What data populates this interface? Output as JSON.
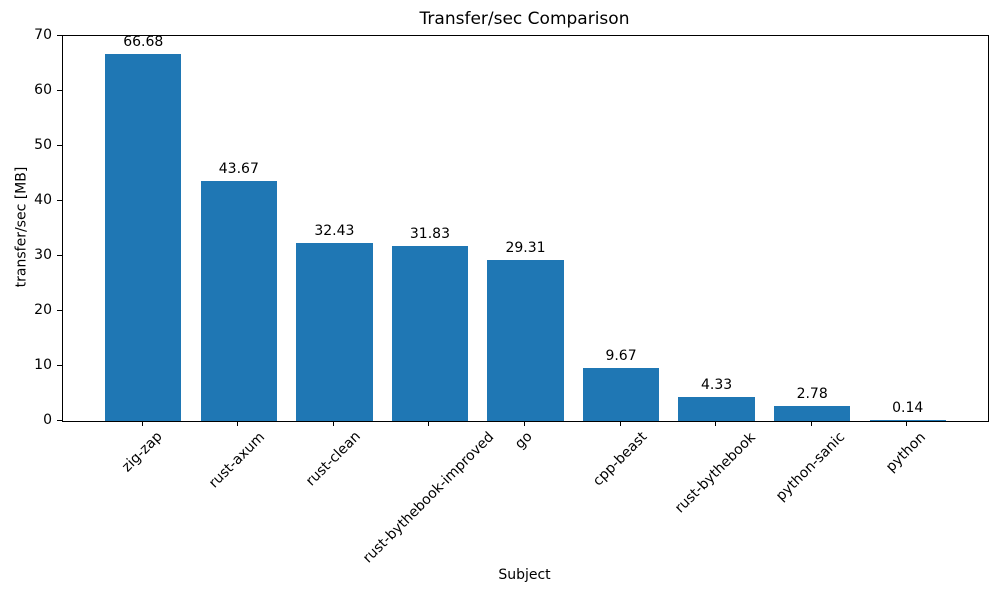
{
  "chart_data": {
    "type": "bar",
    "title": "Transfer/sec Comparison",
    "xlabel": "Subject",
    "ylabel": "transfer/sec [MB]",
    "categories": [
      "zig-zap",
      "rust-axum",
      "rust-clean",
      "rust-bythebook-improved",
      "go",
      "cpp-beast",
      "rust-bythebook",
      "python-sanic",
      "python"
    ],
    "values": [
      66.68,
      43.67,
      32.43,
      31.83,
      29.31,
      9.67,
      4.33,
      2.78,
      0.14
    ],
    "bar_value_labels": [
      "66.68",
      "43.67",
      "32.43",
      "31.83",
      "29.31",
      "9.67",
      "4.33",
      "2.78",
      "0.14"
    ],
    "ylim": [
      0,
      70
    ],
    "yticks": [
      0,
      10,
      20,
      30,
      40,
      50,
      60,
      70
    ],
    "xlim": [
      -0.84,
      8.84
    ],
    "bar_width_units": 0.8,
    "bar_color": "#1f77b4",
    "axis_color": "#000000",
    "text_color": "#000000",
    "x_tick_rotation_deg": 45,
    "grid": false,
    "legend": "none"
  }
}
